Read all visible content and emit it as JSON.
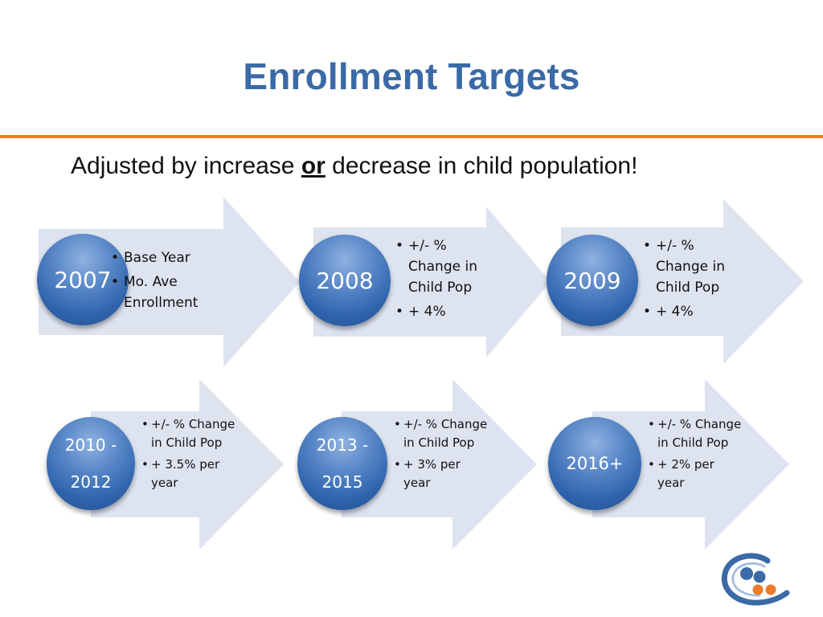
{
  "slide": {
    "title": "Enrollment Targets",
    "subtitle_prefix": "Adjusted by increase ",
    "subtitle_emphasis": "or",
    "subtitle_suffix": " decrease in child population!"
  },
  "cards": [
    {
      "period": "2007",
      "bullets": [
        "Base Year",
        "Mo. Ave Enrollment"
      ]
    },
    {
      "period": "2008",
      "bullets": [
        "+/- % Change in Child Pop",
        "+ 4%"
      ]
    },
    {
      "period": "2009",
      "bullets": [
        "+/- % Change in Child Pop",
        "+ 4%"
      ]
    },
    {
      "period_line1": "2010 -",
      "period_line2": "2012",
      "bullets": [
        "+/- % Change in Child Pop",
        "+ 3.5% per year"
      ]
    },
    {
      "period_line1": "2013 -",
      "period_line2": "2015",
      "bullets": [
        "+/- % Change in Child Pop",
        "+ 3% per year"
      ]
    },
    {
      "period": "2016+",
      "bullets": [
        "+/- % Change in Child Pop",
        "+ 2% per year"
      ]
    }
  ],
  "colors": {
    "title": "#3a6aa7",
    "rule": "#ec7c2a",
    "arrow_fill": "#dde3ef",
    "circle": "#2f64ad",
    "logo_blue": "#3a6aa7",
    "logo_orange": "#ec7c2a"
  },
  "logo": {
    "icon": "organization-logo"
  }
}
